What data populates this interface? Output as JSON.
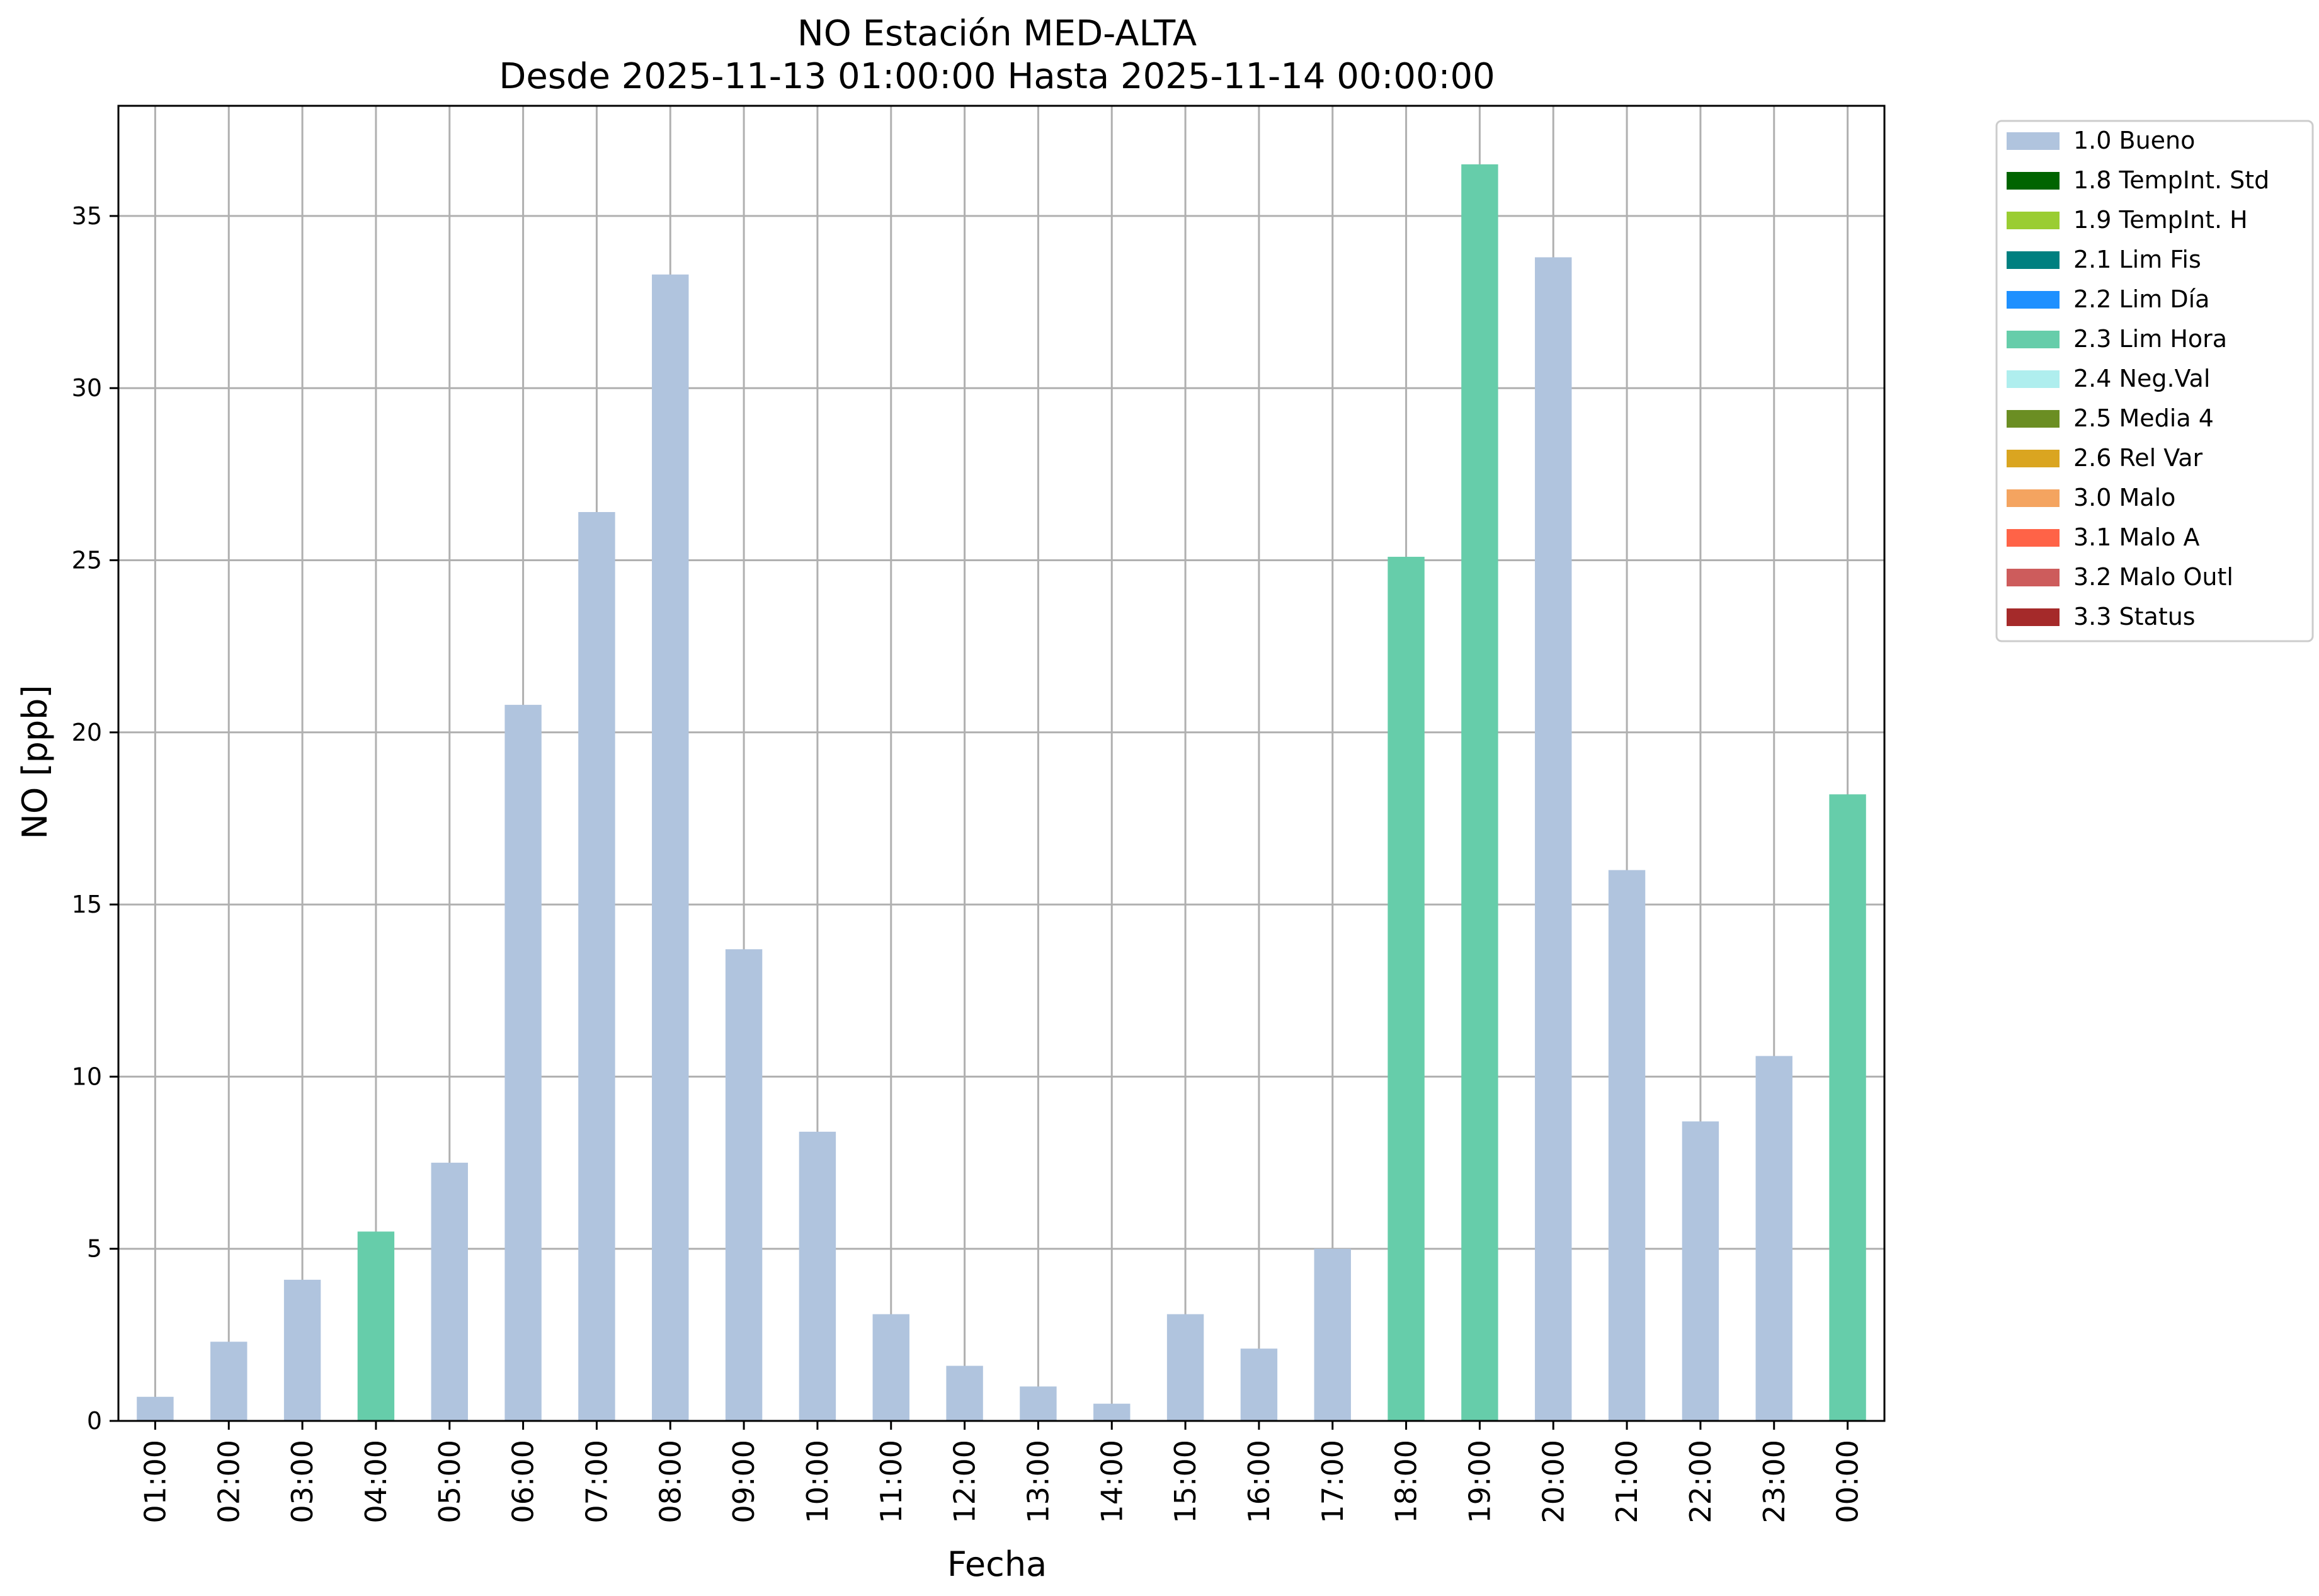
{
  "chart_data": {
    "type": "bar",
    "title": "NO Estación MED-ALTA",
    "subtitle": "Desde 2025-11-13 01:00:00 Hasta 2025-11-14 00:00:00",
    "xlabel": "Fecha",
    "ylabel": "NO [ppb]",
    "ylim": [
      0,
      38.2
    ],
    "yticks": [
      0,
      5,
      10,
      15,
      20,
      25,
      30,
      35
    ],
    "grid": true,
    "legend_position": "outside-top-right",
    "categories": [
      "01:00",
      "02:00",
      "03:00",
      "04:00",
      "05:00",
      "06:00",
      "07:00",
      "08:00",
      "09:00",
      "10:00",
      "11:00",
      "12:00",
      "13:00",
      "14:00",
      "15:00",
      "16:00",
      "17:00",
      "18:00",
      "19:00",
      "20:00",
      "21:00",
      "22:00",
      "23:00",
      "00:00"
    ],
    "values": [
      0.7,
      2.3,
      4.1,
      5.5,
      7.5,
      20.8,
      26.4,
      33.3,
      13.7,
      8.4,
      3.1,
      1.6,
      1.0,
      0.5,
      3.1,
      2.1,
      5.0,
      25.1,
      36.5,
      33.8,
      16.0,
      8.7,
      10.6,
      18.2
    ],
    "flags": [
      "1.0 Bueno",
      "1.0 Bueno",
      "1.0 Bueno",
      "2.3 Lim Hora",
      "1.0 Bueno",
      "1.0 Bueno",
      "1.0 Bueno",
      "1.0 Bueno",
      "1.0 Bueno",
      "1.0 Bueno",
      "1.0 Bueno",
      "1.0 Bueno",
      "1.0 Bueno",
      "1.0 Bueno",
      "1.0 Bueno",
      "1.0 Bueno",
      "1.0 Bueno",
      "2.3 Lim Hora",
      "2.3 Lim Hora",
      "1.0 Bueno",
      "1.0 Bueno",
      "1.0 Bueno",
      "1.0 Bueno",
      "2.3 Lim Hora"
    ],
    "legend": [
      {
        "label": "1.0 Bueno",
        "color": "#b0c4de"
      },
      {
        "label": "1.8 TempInt. Std",
        "color": "#006400"
      },
      {
        "label": "1.9 TempInt. H",
        "color": "#9acd32"
      },
      {
        "label": "2.1 Lim Fis",
        "color": "#008080"
      },
      {
        "label": "2.2 Lim Día",
        "color": "#1e90ff"
      },
      {
        "label": "2.3 Lim Hora",
        "color": "#66cdaa"
      },
      {
        "label": "2.4 Neg.Val",
        "color": "#afeeee"
      },
      {
        "label": "2.5 Media 4",
        "color": "#6b8e23"
      },
      {
        "label": "2.6 Rel Var",
        "color": "#daa520"
      },
      {
        "label": "3.0 Malo",
        "color": "#f4a460"
      },
      {
        "label": "3.1 Malo A",
        "color": "#ff6347"
      },
      {
        "label": "3.2 Malo Outl",
        "color": "#cd5c5c"
      },
      {
        "label": "3.3 Status",
        "color": "#a52a2a"
      }
    ]
  }
}
